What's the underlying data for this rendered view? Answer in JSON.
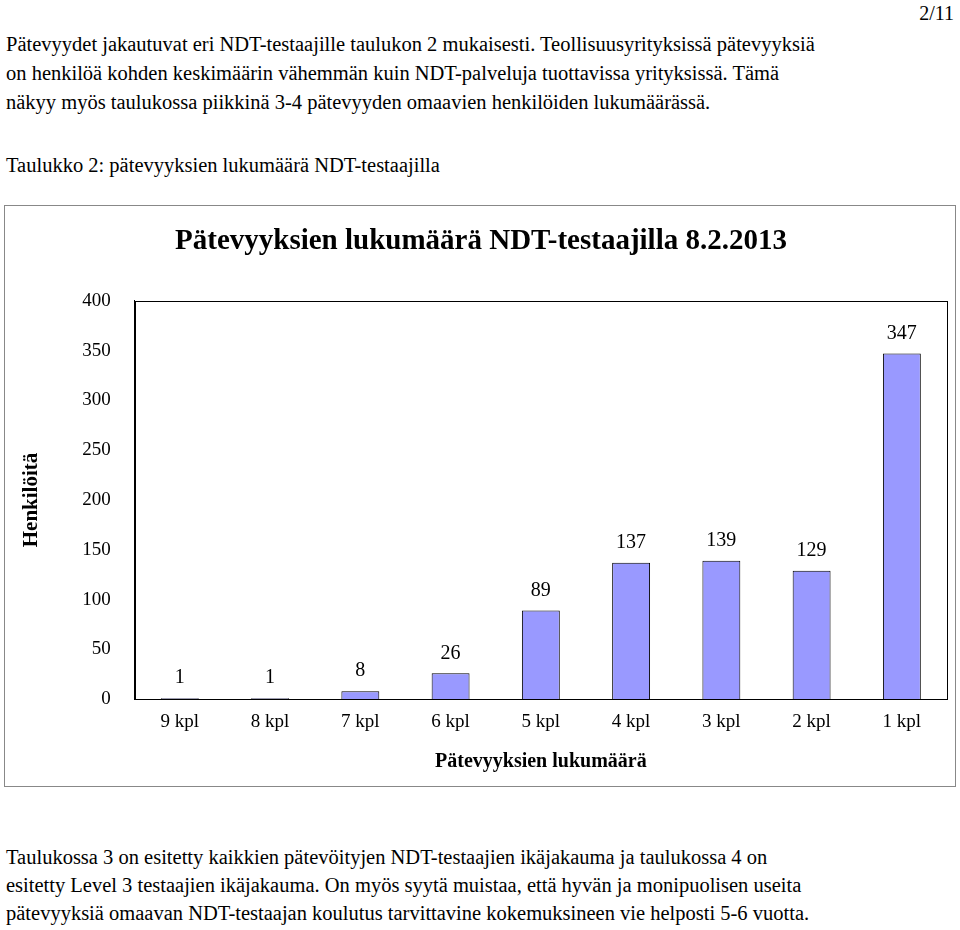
{
  "header": {
    "page": "2/11"
  },
  "intro_lines": [
    "Pätevyydet jakautuvat eri NDT-testaajille taulukon 2 mukaisesti. Teollisuusyrityksissä pätevyyksiä",
    "on henkilöä kohden keskimäärin vähemmän kuin NDT-palveluja tuottavissa yrityksissä. Tämä",
    "näkyy myös taulukossa piikkinä 3-4 pätevyyden omaavien henkilöiden lukumäärässä."
  ],
  "caption": "Taulukko 2: pätevyyksien lukumäärä NDT-testaajilla",
  "chart_data": {
    "type": "bar",
    "title": "Pätevyyksien lukumäärä NDT-testaajilla 8.2.2013",
    "x_label": "Pätevyyksien lukumäärä",
    "y_label": "Henkilöitä",
    "categories": [
      "9 kpl",
      "8 kpl",
      "7 kpl",
      "6 kpl",
      "5 kpl",
      "4 kpl",
      "3 kpl",
      "2 kpl",
      "1 kpl"
    ],
    "values": [
      1,
      1,
      8,
      26,
      89,
      137,
      139,
      129,
      347
    ],
    "color": "#9999ff",
    "ylim": [
      0,
      400
    ],
    "yticks": [
      0,
      50,
      100,
      150,
      200,
      250,
      300,
      350,
      400
    ],
    "grid": false,
    "data_labels": true
  },
  "closing_lines": [
    "Taulukossa 3 on esitetty kaikkien pätevöityjen NDT-testaajien ikäjakauma ja taulukossa 4 on",
    "esitetty Level 3 testaajien ikäjakauma. On myös syytä muistaa, että hyvän ja monipuolisen useita",
    "pätevyyksiä omaavan NDT-testaajan koulutus tarvittavine kokemuksineen vie helposti 5-6 vuotta."
  ]
}
